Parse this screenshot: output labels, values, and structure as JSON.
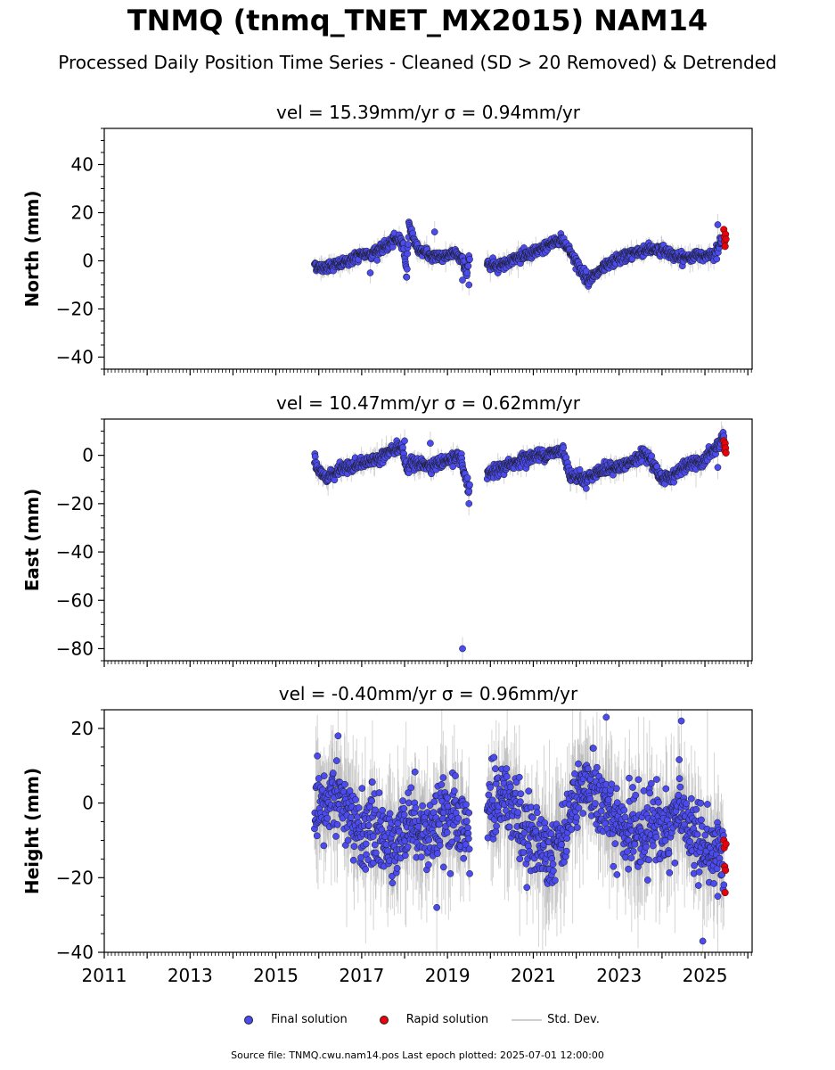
{
  "title": "TNMQ (tnmq_TNET_MX2015) NAM14",
  "subtitle": "Processed Daily Position Time Series - Cleaned (SD > 20 Removed) & Detrended",
  "source": "Source file: TNMQ.cwu.nam14.pos  Last epoch plotted: 2025-07-01 12:00:00",
  "legend": {
    "final": "Final solution",
    "rapid": "Rapid solution",
    "stddev": "Std. Dev."
  },
  "colors": {
    "final": "#4b4bf0",
    "rapid": "#e8000b",
    "stddev": "#b0b0b0",
    "edge": "#1a1a1a"
  },
  "chart_data": [
    {
      "type": "scatter",
      "panel": "north",
      "title": "vel = 15.39mm/yr   σ = 0.94mm/yr",
      "ylabel": "North (mm)",
      "xlim": [
        2011.0,
        2026.1
      ],
      "ylim": [
        -45,
        55
      ],
      "yticks": [
        -40,
        -20,
        0,
        20,
        40
      ],
      "x_tick_labels": [],
      "anchors": [
        [
          2015.9,
          -1
        ],
        [
          2016.0,
          -3
        ],
        [
          2016.3,
          -2
        ],
        [
          2016.6,
          -1
        ],
        [
          2016.9,
          2
        ],
        [
          2017.2,
          3
        ],
        [
          2017.5,
          5
        ],
        [
          2017.8,
          9
        ],
        [
          2017.95,
          8
        ],
        [
          2018.0,
          3
        ],
        [
          2018.05,
          -6
        ],
        [
          2018.1,
          15
        ],
        [
          2018.3,
          5
        ],
        [
          2018.6,
          2
        ],
        [
          2018.9,
          2
        ],
        [
          2019.2,
          3
        ],
        [
          2019.4,
          -1
        ],
        [
          2019.45,
          -6
        ],
        [
          2019.5,
          1
        ],
        [
          2019.7,
          1
        ],
        [
          2019.95,
          -1
        ],
        [
          2020.2,
          -2
        ],
        [
          2020.6,
          1
        ],
        [
          2021.0,
          3
        ],
        [
          2021.4,
          7
        ],
        [
          2021.65,
          9
        ],
        [
          2021.9,
          3
        ],
        [
          2022.1,
          -4
        ],
        [
          2022.3,
          -8
        ],
        [
          2022.5,
          -5
        ],
        [
          2022.9,
          0
        ],
        [
          2023.3,
          3
        ],
        [
          2023.7,
          5
        ],
        [
          2024.1,
          4
        ],
        [
          2024.4,
          1
        ],
        [
          2024.8,
          2
        ],
        [
          2025.2,
          3
        ],
        [
          2025.4,
          8
        ]
      ],
      "noise": 1.1,
      "gaps": [
        [
          2019.52,
          2019.92
        ]
      ],
      "outliers": [
        [
          2018.7,
          12
        ],
        [
          2019.35,
          -8
        ],
        [
          2019.5,
          -10
        ],
        [
          2017.2,
          -5
        ],
        [
          2025.3,
          15
        ]
      ],
      "rapid": [
        [
          2025.44,
          13
        ],
        [
          2025.45,
          10
        ],
        [
          2025.46,
          8
        ],
        [
          2025.47,
          6
        ],
        [
          2025.48,
          11
        ],
        [
          2025.49,
          9
        ]
      ]
    },
    {
      "type": "scatter",
      "panel": "east",
      "title": "vel = 10.47mm/yr   σ = 0.62mm/yr",
      "ylabel": "East (mm)",
      "xlim": [
        2011.0,
        2026.1
      ],
      "ylim": [
        -85,
        15
      ],
      "yticks": [
        -80,
        -60,
        -40,
        -20,
        0
      ],
      "x_tick_labels": [],
      "anchors": [
        [
          2015.9,
          -1
        ],
        [
          2016.0,
          -7
        ],
        [
          2016.2,
          -9
        ],
        [
          2016.5,
          -6
        ],
        [
          2016.9,
          -4
        ],
        [
          2017.3,
          -2
        ],
        [
          2017.7,
          2
        ],
        [
          2017.95,
          3
        ],
        [
          2018.05,
          -6
        ],
        [
          2018.15,
          -3
        ],
        [
          2018.4,
          -4
        ],
        [
          2018.7,
          -4
        ],
        [
          2019.0,
          -2
        ],
        [
          2019.3,
          -1
        ],
        [
          2019.45,
          -12
        ],
        [
          2019.5,
          -14
        ],
        [
          2019.95,
          -8
        ],
        [
          2020.3,
          -5
        ],
        [
          2020.7,
          -2
        ],
        [
          2021.1,
          0
        ],
        [
          2021.5,
          1
        ],
        [
          2021.7,
          2
        ],
        [
          2021.85,
          -8
        ],
        [
          2022.2,
          -10
        ],
        [
          2022.6,
          -6
        ],
        [
          2023.0,
          -5
        ],
        [
          2023.4,
          -2
        ],
        [
          2023.6,
          1
        ],
        [
          2023.85,
          -5
        ],
        [
          2024.0,
          -10
        ],
        [
          2024.3,
          -8
        ],
        [
          2024.6,
          -4
        ],
        [
          2024.9,
          -3
        ],
        [
          2025.2,
          2
        ],
        [
          2025.45,
          7
        ]
      ],
      "noise": 1.2,
      "gaps": [
        [
          2019.52,
          2019.92
        ]
      ],
      "outliers": [
        [
          2019.35,
          -80
        ],
        [
          2018.0,
          6
        ],
        [
          2018.6,
          5
        ],
        [
          2019.5,
          -20
        ],
        [
          2025.3,
          -5
        ]
      ],
      "rapid": [
        [
          2025.44,
          6
        ],
        [
          2025.45,
          4
        ],
        [
          2025.46,
          2
        ],
        [
          2025.47,
          5
        ],
        [
          2025.48,
          3
        ],
        [
          2025.49,
          1
        ]
      ]
    },
    {
      "type": "scatter",
      "panel": "height",
      "title": "vel = -0.40mm/yr   σ = 0.96mm/yr",
      "ylabel": "Height (mm)",
      "xlim": [
        2011.0,
        2026.1
      ],
      "ylim": [
        -40,
        25
      ],
      "yticks": [
        -40,
        -20,
        0,
        20
      ],
      "x_ticks": [
        2011,
        2013,
        2015,
        2017,
        2019,
        2021,
        2023,
        2025
      ],
      "x_tick_labels": [
        "2011",
        "2013",
        "2015",
        "2017",
        "2019",
        "2021",
        "2023",
        "2025"
      ],
      "anchors": [
        [
          2015.9,
          -5
        ],
        [
          2016.2,
          0
        ],
        [
          2016.45,
          3
        ],
        [
          2016.7,
          -5
        ],
        [
          2017.0,
          -8
        ],
        [
          2017.3,
          -6
        ],
        [
          2017.6,
          -12
        ],
        [
          2017.9,
          -8
        ],
        [
          2018.2,
          -4
        ],
        [
          2018.5,
          -8
        ],
        [
          2018.8,
          -6
        ],
        [
          2019.1,
          -4
        ],
        [
          2019.4,
          -8
        ],
        [
          2019.95,
          -3
        ],
        [
          2020.2,
          3
        ],
        [
          2020.5,
          0
        ],
        [
          2020.8,
          -8
        ],
        [
          2021.1,
          -10
        ],
        [
          2021.4,
          -12
        ],
        [
          2021.7,
          -8
        ],
        [
          2022.0,
          2
        ],
        [
          2022.3,
          5
        ],
        [
          2022.6,
          0
        ],
        [
          2022.9,
          -5
        ],
        [
          2023.2,
          -8
        ],
        [
          2023.5,
          -10
        ],
        [
          2023.8,
          -4
        ],
        [
          2024.1,
          -8
        ],
        [
          2024.4,
          -2
        ],
        [
          2024.7,
          -8
        ],
        [
          2025.0,
          -13
        ],
        [
          2025.45,
          -14
        ]
      ],
      "noise": 5.0,
      "gaps": [
        [
          2019.52,
          2019.92
        ]
      ],
      "outliers": [
        [
          2016.45,
          18
        ],
        [
          2022.7,
          23
        ],
        [
          2024.45,
          22
        ],
        [
          2024.95,
          -37
        ],
        [
          2018.75,
          -28
        ],
        [
          2025.3,
          -25
        ]
      ],
      "rapid": [
        [
          2025.44,
          -10
        ],
        [
          2025.45,
          -12
        ],
        [
          2025.46,
          -17
        ],
        [
          2025.47,
          -24
        ],
        [
          2025.48,
          -18
        ],
        [
          2025.49,
          -11
        ]
      ]
    }
  ]
}
